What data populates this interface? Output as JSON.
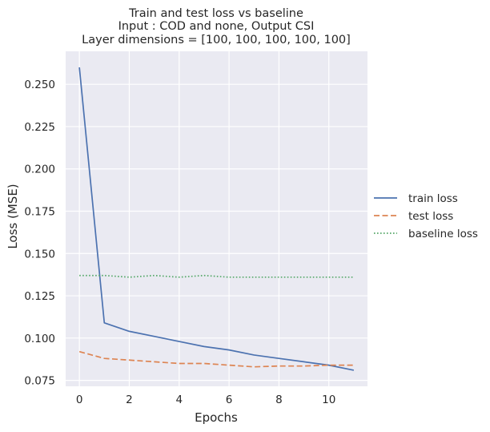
{
  "chart_data": {
    "type": "line",
    "title_lines": [
      "Train and test loss vs baseline",
      "Input : COD and none, Output CSI",
      "Layer dimensions = [100, 100, 100, 100, 100]"
    ],
    "xlabel": "Epochs",
    "ylabel": "Loss (MSE)",
    "x": [
      0,
      1,
      2,
      3,
      4,
      5,
      6,
      7,
      8,
      9,
      10,
      11
    ],
    "xlim": [
      -0.55,
      11.55
    ],
    "ylim": [
      0.0715,
      0.2695
    ],
    "xticks": [
      0,
      2,
      4,
      6,
      8,
      10
    ],
    "yticks": [
      0.075,
      0.1,
      0.125,
      0.15,
      0.175,
      0.2,
      0.225,
      0.25
    ],
    "ytick_labels": [
      "0.075",
      "0.100",
      "0.125",
      "0.150",
      "0.175",
      "0.200",
      "0.225",
      "0.250"
    ],
    "grid": true,
    "legend_position": "right",
    "series": [
      {
        "name": "train loss",
        "style": "solid",
        "color": "#4c72b0",
        "values": [
          0.26,
          0.109,
          0.104,
          0.101,
          0.098,
          0.095,
          0.093,
          0.09,
          0.088,
          0.086,
          0.084,
          0.081
        ]
      },
      {
        "name": "test loss",
        "style": "dashed",
        "color": "#dd8452",
        "values": [
          0.092,
          0.088,
          0.087,
          0.086,
          0.085,
          0.085,
          0.084,
          0.083,
          0.0835,
          0.0835,
          0.084,
          0.084
        ]
      },
      {
        "name": "baseline loss",
        "style": "dotted",
        "color": "#55a868",
        "values": [
          0.137,
          0.137,
          0.136,
          0.137,
          0.136,
          0.137,
          0.136,
          0.136,
          0.136,
          0.136,
          0.136,
          0.136
        ]
      }
    ],
    "colors": {
      "background": "#eaeaf2",
      "grid": "#ffffff",
      "text": "#262626"
    }
  }
}
